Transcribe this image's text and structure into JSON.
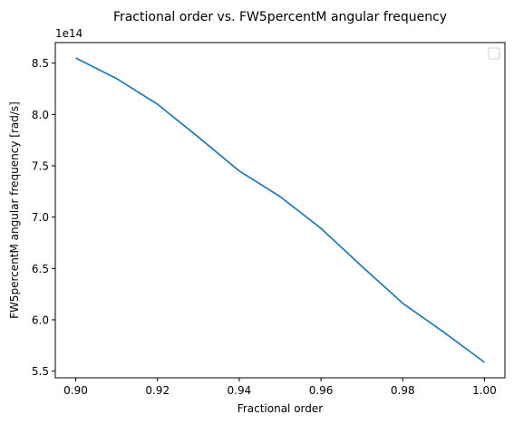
{
  "chart_data": {
    "type": "line",
    "title": "Fractional order vs. FW5percentM angular frequency",
    "xlabel": "Fractional order",
    "ylabel": "FW5percentM angular frequency [rad/s]",
    "offset_label": "1e14",
    "x": [
      0.9,
      0.91,
      0.92,
      0.93,
      0.94,
      0.95,
      0.96,
      0.97,
      0.98,
      0.99,
      1.0
    ],
    "series": [
      {
        "values": [
          8.55,
          8.35,
          8.1,
          7.78,
          7.45,
          7.2,
          6.89,
          6.52,
          6.16,
          5.88,
          5.585
        ],
        "color": "#1f77b4"
      }
    ],
    "xlim": [
      0.895,
      1.005
    ],
    "ylim": [
      5.435,
      8.7
    ],
    "xticks": [
      0.9,
      0.92,
      0.94,
      0.96,
      0.98,
      1.0
    ],
    "xtick_labels": [
      "0.90",
      "0.92",
      "0.94",
      "0.96",
      "0.98",
      "1.00"
    ],
    "yticks": [
      5.5,
      6.0,
      6.5,
      7.0,
      7.5,
      8.0,
      8.5
    ],
    "ytick_labels": [
      "5.5",
      "6.0",
      "6.5",
      "7.0",
      "7.5",
      "8.0",
      "8.5"
    ],
    "grid": false,
    "legend": {
      "placement": "upper-right",
      "entries": []
    }
  }
}
